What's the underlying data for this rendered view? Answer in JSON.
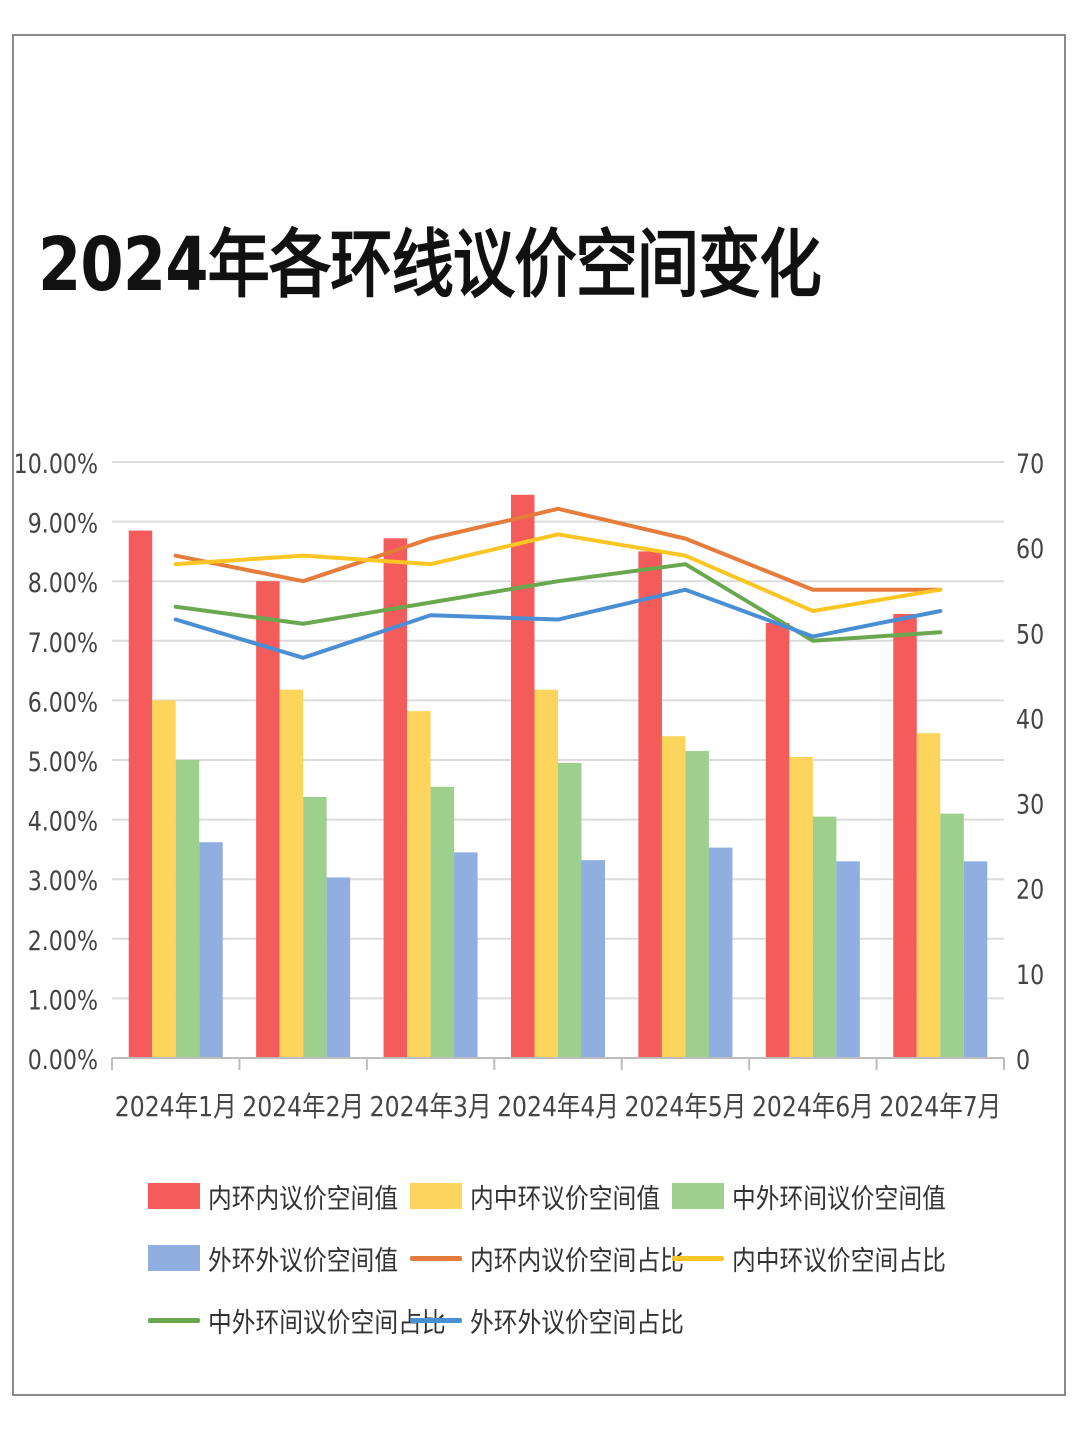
{
  "title": "2024年各环线议价空间变化",
  "chart_data": {
    "type": "bar",
    "title": "2024年各环线议价空间变化",
    "categories": [
      "2024年1月",
      "2024年2月",
      "2024年3月",
      "2024年4月",
      "2024年5月",
      "2024年6月",
      "2024年7月"
    ],
    "y_left": {
      "ylim": [
        0,
        10
      ],
      "ticks": [
        "0.00%",
        "1.00%",
        "2.00%",
        "3.00%",
        "4.00%",
        "5.00%",
        "6.00%",
        "7.00%",
        "8.00%",
        "9.00%",
        "10.00%"
      ]
    },
    "y_right": {
      "ylim": [
        0,
        70
      ],
      "ticks": [
        "0",
        "10",
        "20",
        "30",
        "40",
        "50",
        "60",
        "70"
      ]
    },
    "grid": true,
    "legend_position": "bottom",
    "bar_series": [
      {
        "name": "内环内议价空间值",
        "color": "#f45b5b",
        "values": [
          8.85,
          8.0,
          8.72,
          9.45,
          8.5,
          7.3,
          7.45
        ]
      },
      {
        "name": "内中环议价空间值",
        "color": "#fdd55c",
        "values": [
          6.0,
          6.18,
          5.82,
          6.18,
          5.4,
          5.05,
          5.45
        ]
      },
      {
        "name": "中外环间议价空间值",
        "color": "#9dd08c",
        "values": [
          5.0,
          4.38,
          4.55,
          4.95,
          5.15,
          4.05,
          4.1
        ]
      },
      {
        "name": "外环外议价空间值",
        "color": "#90aee0",
        "values": [
          3.62,
          3.03,
          3.45,
          3.32,
          3.53,
          3.3,
          3.3
        ]
      }
    ],
    "line_series": [
      {
        "name": "内环内议价空间占比",
        "color": "#e57c3c",
        "values": [
          59,
          56,
          61,
          64.5,
          61,
          55,
          55
        ]
      },
      {
        "name": "内中环议价空间占比",
        "color": "#fbc623",
        "values": [
          58,
          59,
          58,
          61.5,
          59,
          52.5,
          55
        ]
      },
      {
        "name": "中外环间议价空间占比",
        "color": "#6aa84f",
        "values": [
          53,
          51,
          53.5,
          56,
          58,
          49,
          50
        ]
      },
      {
        "name": "外环外议价空间占比",
        "color": "#4a8fd4",
        "values": [
          51.5,
          47,
          52,
          51.5,
          55,
          49.5,
          52.5
        ]
      }
    ]
  }
}
